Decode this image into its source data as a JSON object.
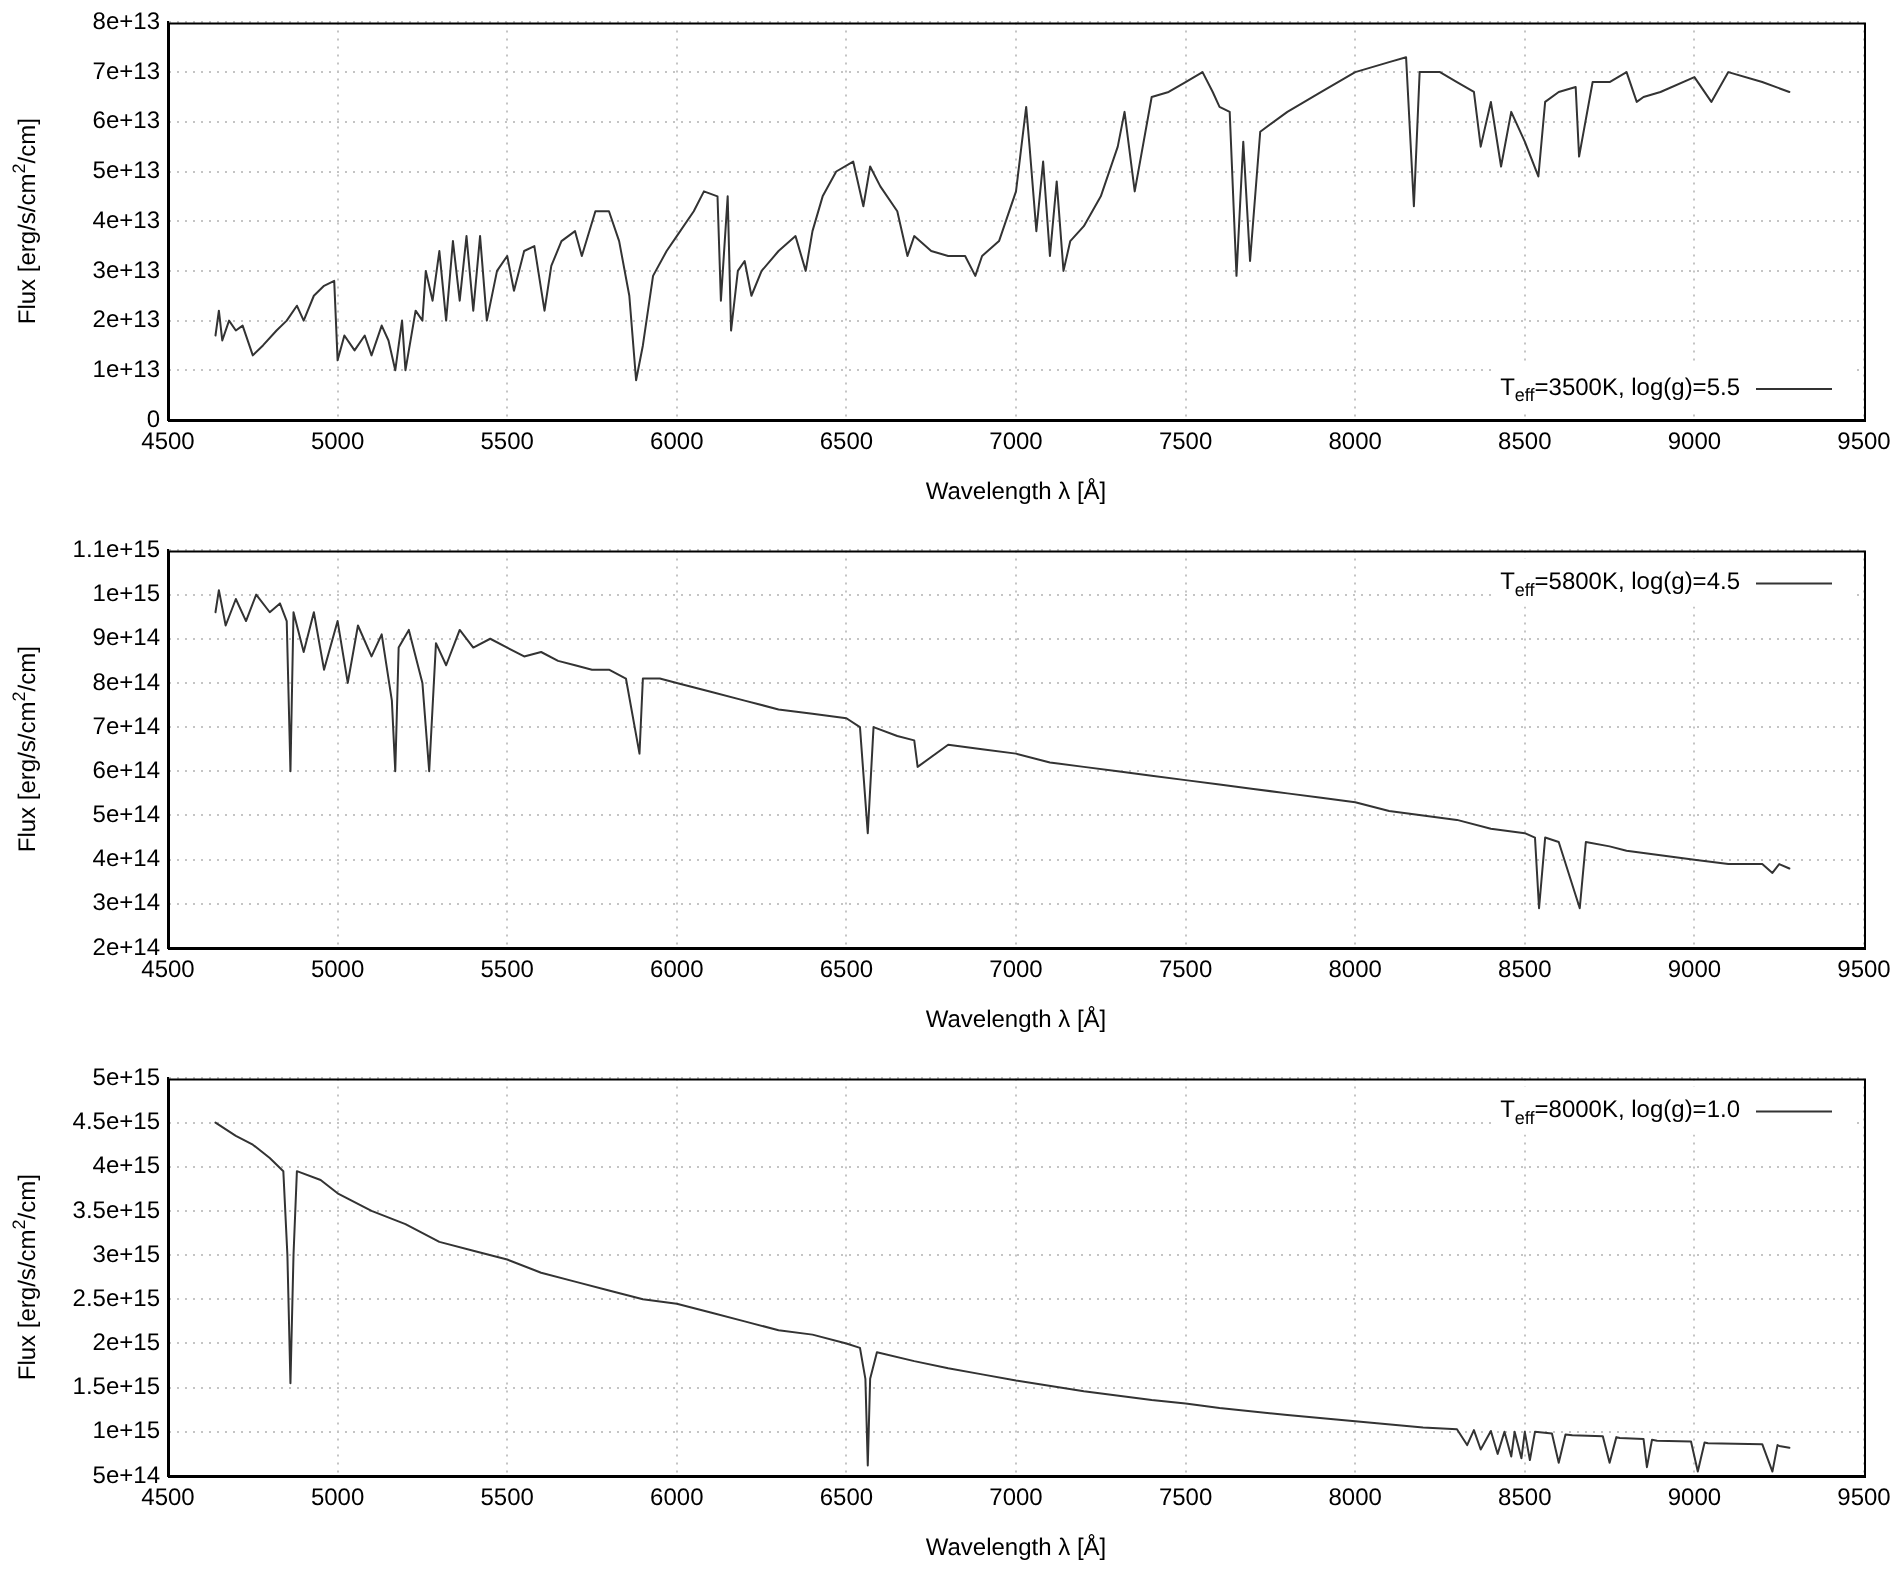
{
  "chart_data": [
    {
      "type": "line",
      "xlabel": "Wavelength λ [Å]",
      "ylabel": "Flux [erg/s/cm$^{2}$/cm]",
      "legend": "bottom right",
      "grid": true,
      "xlim": [
        4500,
        9500
      ],
      "xticks": [
        4500,
        5000,
        5500,
        6000,
        6500,
        7000,
        7500,
        8000,
        8500,
        9000,
        9500
      ],
      "ylim": [
        0,
        80000000000000.0
      ],
      "yticks": [
        0,
        {
          "value": 10000000000000.0,
          "label": "1e+13"
        },
        {
          "value": 20000000000000.0,
          "label": "2e+13"
        },
        {
          "value": 30000000000000.0,
          "label": "3e+13"
        },
        {
          "value": 40000000000000.0,
          "label": "4e+13"
        },
        {
          "value": 50000000000000.0,
          "label": "5e+13"
        },
        {
          "value": 60000000000000.0,
          "label": "6e+13"
        },
        {
          "value": 70000000000000.0,
          "label": "7e+13"
        },
        {
          "value": 80000000000000.0,
          "label": "8e+13"
        }
      ],
      "series": [
        {
          "name": "T$_{eff}$=3500K, log(g)=5.5",
          "color": "#333333",
          "x": [
            4640,
            4650,
            4660,
            4680,
            4700,
            4720,
            4750,
            4780,
            4820,
            4850,
            4880,
            4900,
            4930,
            4960,
            4990,
            5000,
            5020,
            5050,
            5080,
            5100,
            5130,
            5150,
            5170,
            5190,
            5200,
            5230,
            5250,
            5260,
            5280,
            5300,
            5320,
            5340,
            5360,
            5380,
            5400,
            5420,
            5440,
            5470,
            5500,
            5520,
            5550,
            5580,
            5610,
            5630,
            5660,
            5700,
            5720,
            5760,
            5800,
            5830,
            5860,
            5880,
            5900,
            5930,
            5970,
            6000,
            6050,
            6080,
            6120,
            6130,
            6150,
            6160,
            6180,
            6200,
            6220,
            6250,
            6300,
            6350,
            6380,
            6400,
            6430,
            6470,
            6520,
            6550,
            6570,
            6600,
            6650,
            6680,
            6700,
            6750,
            6800,
            6850,
            6880,
            6900,
            6950,
            7000,
            7030,
            7040,
            7060,
            7080,
            7100,
            7120,
            7140,
            7160,
            7200,
            7250,
            7300,
            7320,
            7350,
            7400,
            7450,
            7500,
            7550,
            7580,
            7600,
            7630,
            7650,
            7670,
            7690,
            7720,
            7800,
            7900,
            8000,
            8100,
            8150,
            8173,
            8190,
            8250,
            8300,
            8350,
            8370,
            8400,
            8430,
            8460,
            8500,
            8540,
            8560,
            8600,
            8650,
            8660,
            8700,
            8750,
            8800,
            8830,
            8850,
            8900,
            9000,
            9050,
            9100,
            9200,
            9280
          ],
          "values": [
            17000000000000.0,
            22000000000000.0,
            16000000000000.0,
            20000000000000.0,
            18000000000000.0,
            19000000000000.0,
            13000000000000.0,
            15000000000000.0,
            18000000000000.0,
            20000000000000.0,
            23000000000000.0,
            20000000000000.0,
            25000000000000.0,
            27000000000000.0,
            28000000000000.0,
            12000000000000.0,
            17000000000000.0,
            14000000000000.0,
            17000000000000.0,
            13000000000000.0,
            19000000000000.0,
            16000000000000.0,
            10000000000000.0,
            20000000000000.0,
            10000000000000.0,
            22000000000000.0,
            20000000000000.0,
            30000000000000.0,
            24000000000000.0,
            34000000000000.0,
            20000000000000.0,
            36000000000000.0,
            24000000000000.0,
            37000000000000.0,
            22000000000000.0,
            37000000000000.0,
            20000000000000.0,
            30000000000000.0,
            33000000000000.0,
            26000000000000.0,
            34000000000000.0,
            35000000000000.0,
            22000000000000.0,
            31000000000000.0,
            36000000000000.0,
            38000000000000.0,
            33000000000000.0,
            42000000000000.0,
            42000000000000.0,
            36000000000000.0,
            25000000000000.0,
            8000000000000.0,
            15000000000000.0,
            29000000000000.0,
            34000000000000.0,
            37000000000000.0,
            42000000000000.0,
            46000000000000.0,
            45000000000000.0,
            24000000000000.0,
            45000000000000.0,
            18000000000000.0,
            30000000000000.0,
            32000000000000.0,
            25000000000000.0,
            30000000000000.0,
            34000000000000.0,
            37000000000000.0,
            30000000000000.0,
            38000000000000.0,
            45000000000000.0,
            50000000000000.0,
            52000000000000.0,
            43000000000000.0,
            51000000000000.0,
            47000000000000.0,
            42000000000000.0,
            33000000000000.0,
            37000000000000.0,
            34000000000000.0,
            33000000000000.0,
            33000000000000.0,
            29000000000000.0,
            33000000000000.0,
            36000000000000.0,
            46000000000000.0,
            63000000000000.0,
            55000000000000.0,
            38000000000000.0,
            52000000000000.0,
            33000000000000.0,
            48000000000000.0,
            30000000000000.0,
            36000000000000.0,
            39000000000000.0,
            45000000000000.0,
            55000000000000.0,
            62000000000000.0,
            46000000000000.0,
            65000000000000.0,
            66000000000000.0,
            68000000000000.0,
            70000000000000.0,
            66000000000000.0,
            63000000000000.0,
            62000000000000.0,
            29000000000000.0,
            56000000000000.0,
            32000000000000.0,
            58000000000000.0,
            62000000000000.0,
            66000000000000.0,
            70000000000000.0,
            72000000000000.0,
            73000000000000.0,
            43000000000000.0,
            70000000000000.0,
            70000000000000.0,
            68000000000000.0,
            66000000000000.0,
            55000000000000.0,
            64000000000000.0,
            51000000000000.0,
            62000000000000.0,
            56000000000000.0,
            49000000000000.0,
            64000000000000.0,
            66000000000000.0,
            67000000000000.0,
            53000000000000.0,
            68000000000000.0,
            68000000000000.0,
            70000000000000.0,
            64000000000000.0,
            65000000000000.0,
            66000000000000.0,
            69000000000000.0,
            64000000000000.0,
            70000000000000.0,
            68000000000000.0,
            66000000000000.0
          ]
        }
      ]
    },
    {
      "type": "line",
      "xlabel": "Wavelength λ [Å]",
      "ylabel": "Flux [erg/s/cm$^{2}$/cm]",
      "legend": "top right",
      "grid": true,
      "xlim": [
        4500,
        9500
      ],
      "xticks": [
        4500,
        5000,
        5500,
        6000,
        6500,
        7000,
        7500,
        8000,
        8500,
        9000,
        9500
      ],
      "ylim": [
        200000000000000.0,
        1100000000000000.0
      ],
      "yticks": [
        {
          "value": 200000000000000.0,
          "label": "2e+14"
        },
        {
          "value": 300000000000000.0,
          "label": "3e+14"
        },
        {
          "value": 400000000000000.0,
          "label": "4e+14"
        },
        {
          "value": 500000000000000.0,
          "label": "5e+14"
        },
        {
          "value": 600000000000000.0,
          "label": "6e+14"
        },
        {
          "value": 700000000000000.0,
          "label": "7e+14"
        },
        {
          "value": 800000000000000.0,
          "label": "8e+14"
        },
        {
          "value": 900000000000000.0,
          "label": "9e+14"
        },
        {
          "value": 1000000000000000.0,
          "label": "1e+15"
        },
        {
          "value": 1100000000000000.0,
          "label": "1.1e+15"
        }
      ],
      "series": [
        {
          "name": "T$_{eff}$=5800K, log(g)=4.5",
          "color": "#333333",
          "x": [
            4640,
            4650,
            4670,
            4700,
            4730,
            4760,
            4800,
            4830,
            4850,
            4861,
            4870,
            4900,
            4930,
            4960,
            5000,
            5030,
            5060,
            5100,
            5130,
            5160,
            5170,
            5180,
            5210,
            5250,
            5270,
            5290,
            5320,
            5360,
            5400,
            5450,
            5500,
            5550,
            5600,
            5650,
            5700,
            5750,
            5800,
            5850,
            5890,
            5900,
            5950,
            6000,
            6100,
            6200,
            6300,
            6400,
            6500,
            6540,
            6563,
            6580,
            6650,
            6700,
            6710,
            6800,
            6900,
            7000,
            7100,
            7200,
            7300,
            7400,
            7500,
            7600,
            7700,
            7800,
            7900,
            8000,
            8100,
            8200,
            8300,
            8400,
            8500,
            8530,
            8542,
            8560,
            8600,
            8662,
            8680,
            8750,
            8800,
            8900,
            9000,
            9100,
            9200,
            9230,
            9250,
            9280
          ],
          "values": [
            960000000000000.0,
            1010000000000000.0,
            930000000000000.0,
            990000000000000.0,
            940000000000000.0,
            1000000000000000.0,
            960000000000000.0,
            980000000000000.0,
            940000000000000.0,
            600000000000000.0,
            960000000000000.0,
            870000000000000.0,
            960000000000000.0,
            830000000000000.0,
            940000000000000.0,
            800000000000000.0,
            930000000000000.0,
            860000000000000.0,
            910000000000000.0,
            760000000000000.0,
            600000000000000.0,
            880000000000000.0,
            920000000000000.0,
            800000000000000.0,
            600000000000000.0,
            890000000000000.0,
            840000000000000.0,
            920000000000000.0,
            880000000000000.0,
            900000000000000.0,
            880000000000000.0,
            860000000000000.0,
            870000000000000.0,
            850000000000000.0,
            840000000000000.0,
            830000000000000.0,
            830000000000000.0,
            810000000000000.0,
            640000000000000.0,
            810000000000000.0,
            810000000000000.0,
            800000000000000.0,
            780000000000000.0,
            760000000000000.0,
            740000000000000.0,
            730000000000000.0,
            720000000000000.0,
            700000000000000.0,
            460000000000000.0,
            700000000000000.0,
            680000000000000.0,
            670000000000000.0,
            610000000000000.0,
            660000000000000.0,
            650000000000000.0,
            640000000000000.0,
            620000000000000.0,
            610000000000000.0,
            600000000000000.0,
            590000000000000.0,
            580000000000000.0,
            570000000000000.0,
            560000000000000.0,
            550000000000000.0,
            540000000000000.0,
            530000000000000.0,
            510000000000000.0,
            500000000000000.0,
            490000000000000.0,
            470000000000000.0,
            460000000000000.0,
            450000000000000.0,
            290000000000000.0,
            450000000000000.0,
            440000000000000.0,
            290000000000000.0,
            440000000000000.0,
            430000000000000.0,
            420000000000000.0,
            410000000000000.0,
            400000000000000.0,
            390000000000000.0,
            390000000000000.0,
            370000000000000.0,
            390000000000000.0,
            380000000000000.0
          ]
        }
      ]
    },
    {
      "type": "line",
      "xlabel": "Wavelength λ [Å]",
      "ylabel": "Flux [erg/s/cm$^{2}$/cm]",
      "legend": "top right",
      "grid": true,
      "xlim": [
        4500,
        9500
      ],
      "xticks": [
        4500,
        5000,
        5500,
        6000,
        6500,
        7000,
        7500,
        8000,
        8500,
        9000,
        9500
      ],
      "ylim": [
        500000000000000.0,
        5000000000000000.0
      ],
      "yticks": [
        {
          "value": 500000000000000.0,
          "label": "5e+14"
        },
        {
          "value": 1000000000000000.0,
          "label": "1e+15"
        },
        {
          "value": 1500000000000000.0,
          "label": "1.5e+15"
        },
        {
          "value": 2000000000000000.0,
          "label": "2e+15"
        },
        {
          "value": 2500000000000000.0,
          "label": "2.5e+15"
        },
        {
          "value": 3000000000000000.0,
          "label": "3e+15"
        },
        {
          "value": 3500000000000000.0,
          "label": "3.5e+15"
        },
        {
          "value": 4000000000000000.0,
          "label": "4e+15"
        },
        {
          "value": 4500000000000000.0,
          "label": "4.5e+15"
        },
        {
          "value": 5000000000000000.0,
          "label": "5e+15"
        }
      ],
      "series": [
        {
          "name": "T$_{eff}$=8000K, log(g)=1.0",
          "color": "#333333",
          "x": [
            4640,
            4700,
            4750,
            4800,
            4840,
            4852,
            4861,
            4870,
            4880,
            4950,
            5000,
            5100,
            5200,
            5300,
            5400,
            5500,
            5600,
            5700,
            5800,
            5900,
            6000,
            6100,
            6200,
            6300,
            6400,
            6500,
            6540,
            6556,
            6563,
            6570,
            6590,
            6700,
            6800,
            6900,
            7000,
            7200,
            7400,
            7500,
            7600,
            7800,
            8000,
            8200,
            8300,
            8330,
            8350,
            8370,
            8400,
            8420,
            8440,
            8460,
            8470,
            8490,
            8500,
            8515,
            8530,
            8580,
            8600,
            8620,
            8640,
            8730,
            8750,
            8770,
            8780,
            8850,
            8860,
            8875,
            8890,
            8990,
            9010,
            9030,
            9040,
            9200,
            9230,
            9245,
            9250,
            9280
          ],
          "values": [
            4500000000000000.0,
            4350000000000000.0,
            4250000000000000.0,
            4100000000000000.0,
            3950000000000000.0,
            3000000000000000.0,
            1550000000000000.0,
            3000000000000000.0,
            3950000000000000.0,
            3850000000000000.0,
            3700000000000000.0,
            3500000000000000.0,
            3350000000000000.0,
            3150000000000000.0,
            3050000000000000.0,
            2950000000000000.0,
            2800000000000000.0,
            2700000000000000.0,
            2600000000000000.0,
            2500000000000000.0,
            2450000000000000.0,
            2350000000000000.0,
            2250000000000000.0,
            2150000000000000.0,
            2100000000000000.0,
            2000000000000000.0,
            1950000000000000.0,
            1600000000000000.0,
            620000000000000.0,
            1600000000000000.0,
            1900000000000000.0,
            1800000000000000.0,
            1720000000000000.0,
            1650000000000000.0,
            1580000000000000.0,
            1460000000000000.0,
            1360000000000000.0,
            1320000000000000.0,
            1270000000000000.0,
            1190000000000000.0,
            1120000000000000.0,
            1050000000000000.0,
            1030000000000000.0,
            850000000000000.0,
            1020000000000000.0,
            800000000000000.0,
            1010000000000000.0,
            750000000000000.0,
            1000000000000000.0,
            720000000000000.0,
            1000000000000000.0,
            700000000000000.0,
            1000000000000000.0,
            680000000000000.0,
            1000000000000000.0,
            980000000000000.0,
            650000000000000.0,
            970000000000000.0,
            960000000000000.0,
            950000000000000.0,
            650000000000000.0,
            940000000000000.0,
            930000000000000.0,
            920000000000000.0,
            600000000000000.0,
            910000000000000.0,
            900000000000000.0,
            890000000000000.0,
            550000000000000.0,
            880000000000000.0,
            870000000000000.0,
            860000000000000.0,
            550000000000000.0,
            850000000000000.0,
            840000000000000.0,
            820000000000000.0
          ]
        }
      ]
    }
  ]
}
